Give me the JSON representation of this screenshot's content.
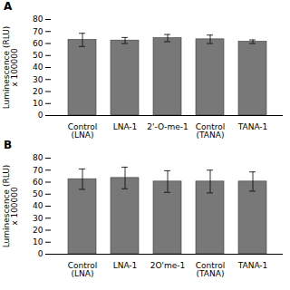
{
  "chart_data": [
    {
      "type": "bar",
      "title": "A",
      "categories": [
        "Control\n(LNA)",
        "LNA-1",
        "2'-O-me-1",
        "Control\n(TANA)",
        "TANA-1"
      ],
      "values": [
        63,
        62.5,
        64.5,
        63.5,
        61.5
      ],
      "errors": [
        5.5,
        2.5,
        3.0,
        3.5,
        1.5
      ],
      "ylim": [
        0,
        80
      ],
      "yticks": [
        0,
        10,
        20,
        30,
        40,
        50,
        60,
        70,
        80
      ],
      "ylabel": "Luminescence (RLU)\nx 100000",
      "color": "#787878"
    },
    {
      "type": "bar",
      "title": "B",
      "categories": [
        "Control\n(LNA)",
        "LNA-1",
        "2O'me-1",
        "Control\n(TANA)",
        "TANA-1"
      ],
      "values": [
        62.5,
        63.5,
        60.5,
        60.5,
        60.5
      ],
      "errors": [
        8.5,
        9.0,
        9.0,
        9.5,
        8.0
      ],
      "ylim": [
        0,
        80
      ],
      "yticks": [
        0,
        10,
        20,
        30,
        40,
        50,
        60,
        70,
        80
      ],
      "ylabel": "Luminescence (RLU)\nx 100000",
      "color": "#787878"
    }
  ]
}
